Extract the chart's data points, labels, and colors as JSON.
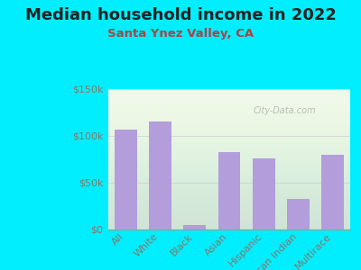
{
  "title": "Median household income in 2022",
  "subtitle": "Santa Ynez Valley, CA",
  "categories": [
    "All",
    "White",
    "Black",
    "Asian",
    "Hispanic",
    "American Indian",
    "Multirace"
  ],
  "values": [
    107000,
    115000,
    5000,
    83000,
    76000,
    33000,
    80000
  ],
  "bar_color": "#b39ddb",
  "background_outer": "#00eeff",
  "background_inner": "#eef8ee",
  "title_color": "#222222",
  "subtitle_color": "#aa4444",
  "tick_label_color": "#887766",
  "watermark": "City-Data.com",
  "ylim": [
    0,
    150000
  ],
  "yticks": [
    0,
    50000,
    100000,
    150000
  ],
  "ytick_labels": [
    "$0",
    "$50k",
    "$100k",
    "$150k"
  ],
  "title_fontsize": 13,
  "subtitle_fontsize": 9.5,
  "tick_fontsize": 8
}
